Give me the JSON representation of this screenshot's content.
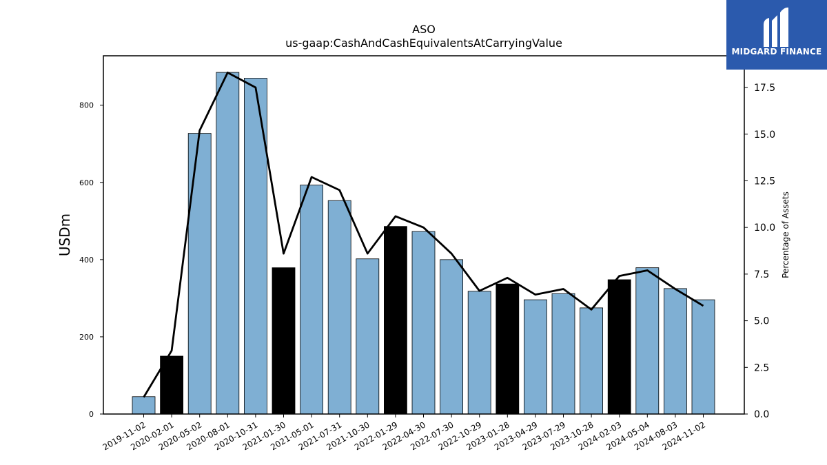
{
  "chart_data": {
    "type": "bar",
    "title": "ASO",
    "subtitle": "us-gaap:CashAndCashEquivalentsAtCarryingValue",
    "ylabel": "USDm",
    "y2label": "Percentage of Assets",
    "ylim": [
      0,
      928
    ],
    "y2lim": [
      0,
      19.2
    ],
    "yticks": [
      0,
      200,
      400,
      600,
      800
    ],
    "y2ticks": [
      0.0,
      2.5,
      5.0,
      7.5,
      10.0,
      12.5,
      15.0,
      17.5
    ],
    "categories": [
      "2019-11-02",
      "2020-02-01",
      "2020-05-02",
      "2020-08-01",
      "2020-10-31",
      "2021-01-30",
      "2021-05-01",
      "2021-07-31",
      "2021-10-30",
      "2022-01-29",
      "2022-04-30",
      "2022-07-30",
      "2022-10-29",
      "2023-01-28",
      "2023-04-29",
      "2023-07-29",
      "2023-10-28",
      "2024-02-03",
      "2024-05-04",
      "2024-08-03",
      "2024-11-02"
    ],
    "series": [
      {
        "values": [
          45,
          150,
          727,
          885,
          870,
          379,
          593,
          553,
          402,
          486,
          473,
          400,
          318,
          337,
          296,
          312,
          275,
          348,
          379,
          325,
          296
        ],
        "highlight": [
          false,
          true,
          false,
          false,
          false,
          true,
          false,
          false,
          false,
          true,
          false,
          false,
          false,
          true,
          false,
          false,
          false,
          true,
          false,
          false,
          false
        ],
        "color": "#7fafd3",
        "highlight_color": "#000000"
      },
      {
        "axis": "right",
        "type": "line",
        "values": [
          0.9,
          3.4,
          15.2,
          18.3,
          17.5,
          8.6,
          12.7,
          12.0,
          8.6,
          10.6,
          10.0,
          8.6,
          6.6,
          7.3,
          6.4,
          6.7,
          5.6,
          7.4,
          7.7,
          6.7,
          5.8
        ],
        "color": "#000000"
      }
    ]
  },
  "logo": {
    "text": "MIDGARD FINANCE",
    "color": "#2b5aad"
  }
}
